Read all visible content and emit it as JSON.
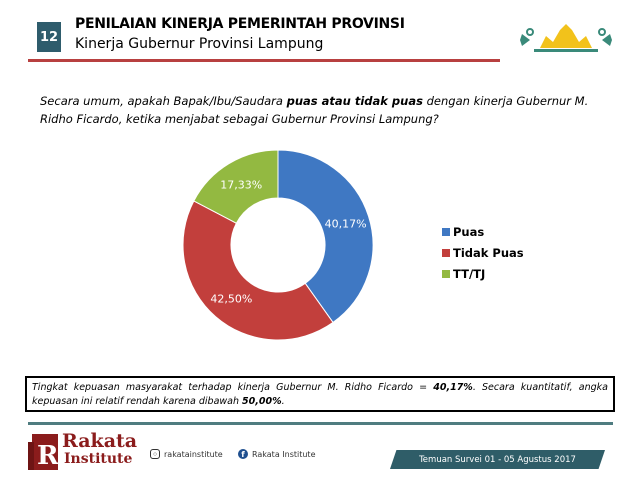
{
  "header": {
    "slide_number": "12",
    "title": "PENILAIAN KINERJA PEMERINTAH PROVINSI",
    "subtitle": "Kinerja Gubernur Provinsi Lampung"
  },
  "question": {
    "part1": "Secara umum, apakah Bapak/Ibu/Saudara ",
    "bold": "puas atau tidak puas",
    "part2": " dengan kinerja Gubernur M. Ridho Ficardo, ketika menjabat sebagai Gubernur Provinsi Lampung?"
  },
  "chart_data": {
    "type": "pie",
    "donut": true,
    "categories": [
      "Puas",
      "Tidak Puas",
      "TT/TJ"
    ],
    "values": [
      40.17,
      42.5,
      17.33
    ],
    "labels": [
      "40,17%",
      "42,50%",
      "17,33%"
    ],
    "colors": [
      "#3f78c3",
      "#c23f3c",
      "#93b941"
    ],
    "legend": "right"
  },
  "note": {
    "part1": "Tingkat kepuasan masyarakat terhadap kinerja Gubernur M. Ridho Ficardo = ",
    "bold1": "40,17%",
    "part2": ". Secara kuantitatif, angka kepuasan ini relatif rendah karena dibawah ",
    "bold2": "50,00%",
    "part3": "."
  },
  "footer": {
    "brand": "Rakata",
    "brand2": "Institute",
    "instagram": "rakatainstitute",
    "facebook": "Rakata Institute",
    "survey": "Temuan Survei 01 - 05 Agustus 2017"
  }
}
